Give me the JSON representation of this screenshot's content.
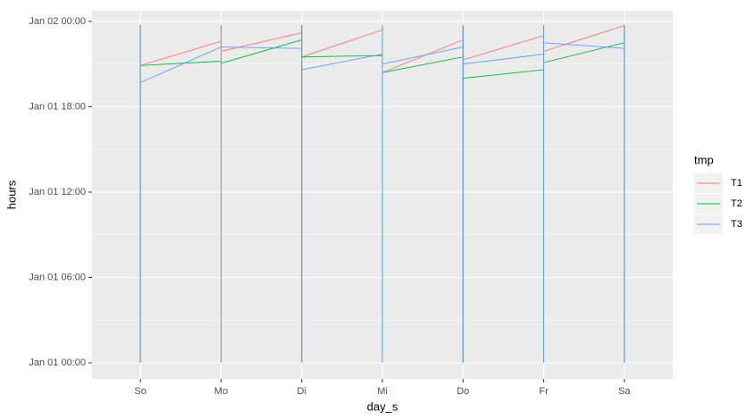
{
  "chart_data": {
    "type": "line",
    "x_label": "day_s",
    "y_label": "hours",
    "legend_title": "tmp",
    "categories": [
      "So",
      "Mo",
      "Di",
      "Mi",
      "Do",
      "Fr",
      "Sa"
    ],
    "ylim": [
      -1.13,
      24.75
    ],
    "yticks": [
      {
        "value": 0,
        "label": "Jan 01 00:00"
      },
      {
        "value": 6,
        "label": "Jan 01 06:00"
      },
      {
        "value": 12,
        "label": "Jan 01 12:00"
      },
      {
        "value": 18,
        "label": "Jan 01 18:00"
      },
      {
        "value": 24,
        "label": "Jan 02 00:00"
      }
    ],
    "grid": true,
    "legend_position": "right",
    "series": [
      {
        "name": "T1",
        "color": "#F8766D",
        "x": [
          "So",
          "So",
          "So",
          "Mo",
          "Mo",
          "Mo",
          "Mo",
          "Di",
          "Di",
          "Di",
          "Di",
          "Mi",
          "Mi",
          "Mi",
          "Mi",
          "Do",
          "Do",
          "Do",
          "Do",
          "Fr",
          "Fr",
          "Fr",
          "Fr",
          "Sa",
          "Sa",
          "Sa"
        ],
        "values": [
          0,
          23.75,
          20.9,
          22.6,
          0,
          23.75,
          21.9,
          23.2,
          0,
          23.75,
          21.5,
          23.4,
          0,
          23.75,
          20.4,
          22.7,
          0,
          23.75,
          21.3,
          23.0,
          0,
          23.75,
          21.9,
          23.7,
          0,
          23.75
        ]
      },
      {
        "name": "T2",
        "color": "#00BA38",
        "x": [
          "So",
          "So",
          "So",
          "Mo",
          "Mo",
          "Mo",
          "Mo",
          "Di",
          "Di",
          "Di",
          "Di",
          "Mi",
          "Mi",
          "Mi",
          "Mi",
          "Do",
          "Do",
          "Do",
          "Do",
          "Fr",
          "Fr",
          "Fr",
          "Fr",
          "Sa",
          "Sa",
          "Sa"
        ],
        "values": [
          0,
          23.75,
          20.9,
          21.2,
          0,
          23.75,
          21.05,
          22.7,
          0,
          23.75,
          21.5,
          21.6,
          0,
          23.75,
          20.4,
          21.5,
          0,
          23.75,
          20.0,
          20.6,
          0,
          23.75,
          21.1,
          22.5,
          0,
          23.75
        ]
      },
      {
        "name": "T3",
        "color": "#619CFF",
        "x": [
          "So",
          "So",
          "So",
          "Mo",
          "Mo",
          "Mo",
          "Mo",
          "Di",
          "Di",
          "Di",
          "Di",
          "Mi",
          "Mi",
          "Mi",
          "Mi",
          "Do",
          "Do",
          "Do",
          "Do",
          "Fr",
          "Fr",
          "Fr",
          "Fr",
          "Sa",
          "Sa",
          "Sa"
        ],
        "values": [
          0,
          23.75,
          19.7,
          22.2,
          0,
          23.75,
          22.2,
          22.1,
          0,
          23.75,
          20.6,
          21.7,
          0,
          23.75,
          21.0,
          22.2,
          0,
          23.75,
          21.0,
          21.7,
          0,
          23.75,
          22.5,
          22.1,
          0,
          23.75
        ]
      }
    ]
  }
}
